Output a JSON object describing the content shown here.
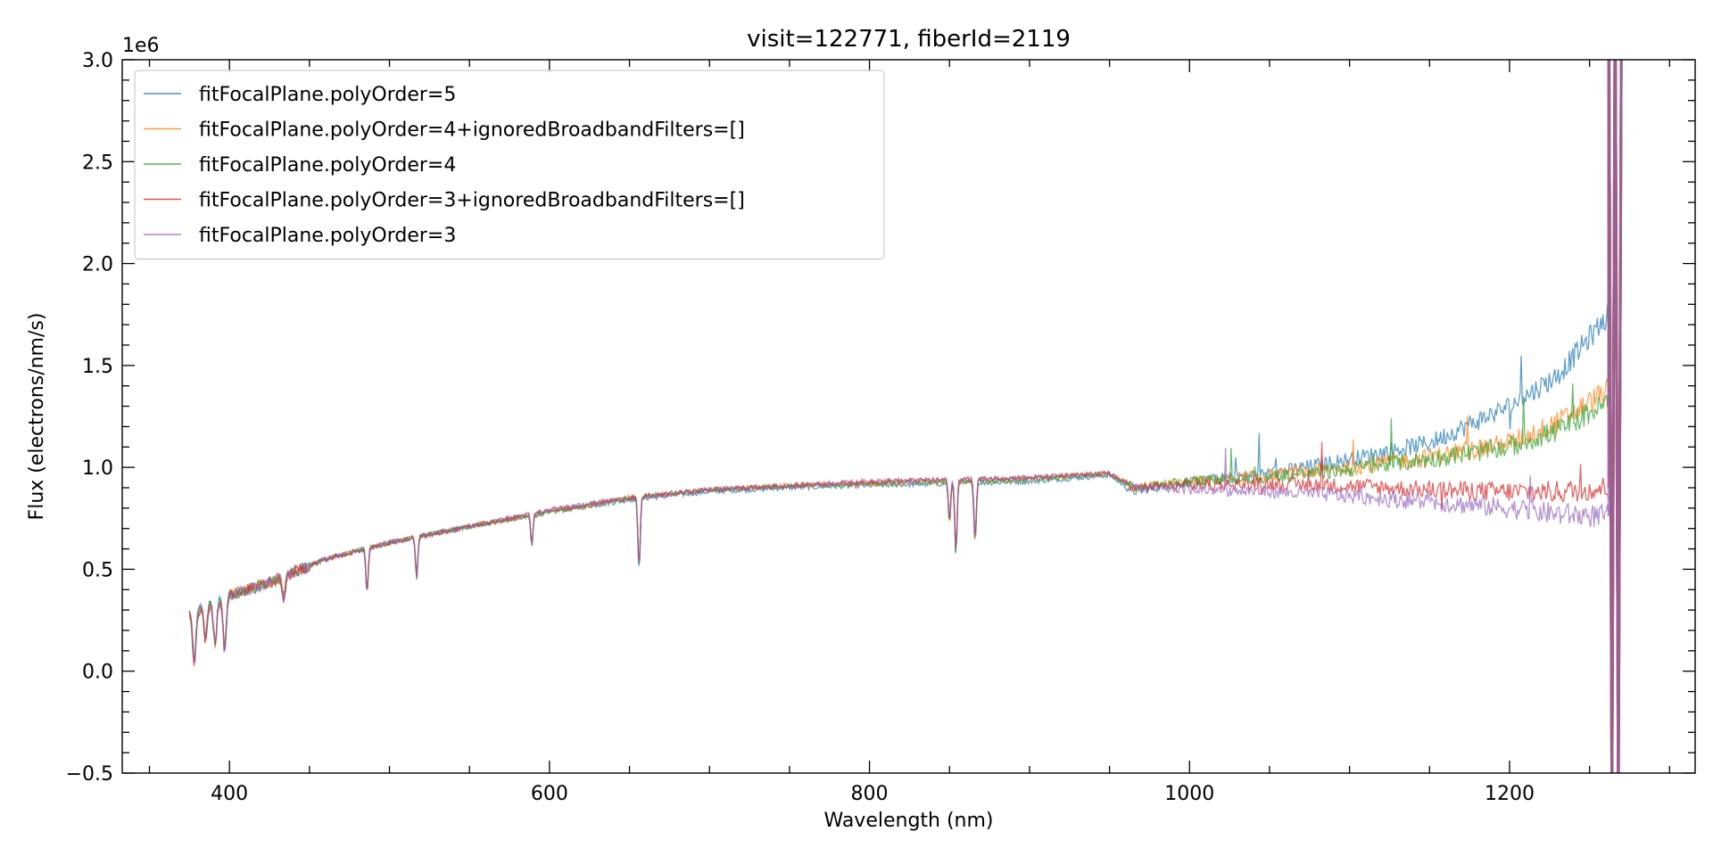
{
  "chart_data": {
    "type": "line",
    "title": "visit=122771, fiberId=2119",
    "xlabel": "Wavelength (nm)",
    "ylabel": "Flux (electrons/nm/s)",
    "y_offset_label": "1e6",
    "xlim": [
      333,
      1316
    ],
    "ylim": [
      -0.5,
      3.0
    ],
    "x_ticks": [
      400,
      600,
      800,
      1000,
      1200
    ],
    "x_tick_labels": [
      "400",
      "600",
      "800",
      "1000",
      "1200"
    ],
    "y_ticks": [
      -0.5,
      0.0,
      0.5,
      1.0,
      1.5,
      2.0,
      2.5,
      3.0
    ],
    "y_tick_labels": [
      "−0.5",
      "0.0",
      "0.5",
      "1.0",
      "1.5",
      "2.0",
      "2.5",
      "3.0"
    ],
    "grid": false,
    "legend_position": "top-left",
    "absorption_features": [
      {
        "x": 378,
        "depth": 0.25
      },
      {
        "x": 385,
        "depth": 0.15
      },
      {
        "x": 391,
        "depth": 0.2
      },
      {
        "x": 397,
        "depth": 0.25
      },
      {
        "x": 434,
        "depth": 0.1
      },
      {
        "x": 486,
        "depth": 0.22
      },
      {
        "x": 517,
        "depth": 0.2
      },
      {
        "x": 589,
        "depth": 0.15
      },
      {
        "x": 656,
        "depth": 0.35
      },
      {
        "x": 850,
        "depth": 0.2
      },
      {
        "x": 854,
        "depth": 0.35
      },
      {
        "x": 866,
        "depth": 0.3
      }
    ],
    "series": [
      {
        "name": "fitFocalPlane.polyOrder=5",
        "color": "#1f77b4",
        "x": [
          375,
          400,
          430,
          460,
          500,
          550,
          600,
          650,
          700,
          750,
          800,
          850,
          900,
          950,
          965,
          1000,
          1050,
          1100,
          1150,
          1200,
          1230,
          1262
        ],
        "y": [
          0.28,
          0.37,
          0.45,
          0.55,
          0.63,
          0.71,
          0.78,
          0.84,
          0.88,
          0.9,
          0.91,
          0.92,
          0.93,
          0.96,
          0.88,
          0.93,
          0.97,
          1.04,
          1.12,
          1.3,
          1.45,
          1.75
        ]
      },
      {
        "name": "fitFocalPlane.polyOrder=4+ignoredBroadbandFilters=[]",
        "color": "#ff7f0e",
        "x": [
          375,
          400,
          430,
          460,
          500,
          550,
          600,
          650,
          700,
          750,
          800,
          850,
          900,
          950,
          965,
          1000,
          1050,
          1100,
          1150,
          1200,
          1230,
          1262
        ],
        "y": [
          0.28,
          0.37,
          0.45,
          0.55,
          0.63,
          0.71,
          0.78,
          0.85,
          0.89,
          0.91,
          0.92,
          0.93,
          0.94,
          0.97,
          0.9,
          0.93,
          0.96,
          1.0,
          1.05,
          1.12,
          1.22,
          1.38
        ]
      },
      {
        "name": "fitFocalPlane.polyOrder=4",
        "color": "#2ca02c",
        "x": [
          375,
          400,
          430,
          460,
          500,
          550,
          600,
          650,
          700,
          750,
          800,
          850,
          900,
          950,
          965,
          1000,
          1050,
          1100,
          1150,
          1200,
          1230,
          1262
        ],
        "y": [
          0.28,
          0.37,
          0.45,
          0.55,
          0.63,
          0.71,
          0.78,
          0.85,
          0.89,
          0.91,
          0.92,
          0.93,
          0.94,
          0.97,
          0.9,
          0.93,
          0.95,
          0.99,
          1.04,
          1.1,
          1.18,
          1.32
        ]
      },
      {
        "name": "fitFocalPlane.polyOrder=3+ignoredBroadbandFilters=[]",
        "color": "#d62728",
        "x": [
          375,
          400,
          430,
          460,
          500,
          550,
          600,
          650,
          700,
          750,
          800,
          850,
          900,
          950,
          965,
          1000,
          1050,
          1100,
          1150,
          1200,
          1230,
          1262
        ],
        "y": [
          0.28,
          0.37,
          0.45,
          0.55,
          0.63,
          0.71,
          0.79,
          0.85,
          0.89,
          0.91,
          0.93,
          0.94,
          0.95,
          0.97,
          0.9,
          0.91,
          0.92,
          0.91,
          0.89,
          0.88,
          0.88,
          0.9
        ]
      },
      {
        "name": "fitFocalPlane.polyOrder=3",
        "color": "#9467bd",
        "x": [
          375,
          400,
          430,
          460,
          500,
          550,
          600,
          650,
          700,
          750,
          800,
          850,
          900,
          950,
          965,
          1000,
          1050,
          1100,
          1150,
          1200,
          1230,
          1262
        ],
        "y": [
          0.28,
          0.37,
          0.45,
          0.55,
          0.63,
          0.71,
          0.79,
          0.85,
          0.89,
          0.91,
          0.93,
          0.94,
          0.95,
          0.97,
          0.9,
          0.89,
          0.88,
          0.86,
          0.83,
          0.8,
          0.77,
          0.76
        ]
      }
    ]
  }
}
